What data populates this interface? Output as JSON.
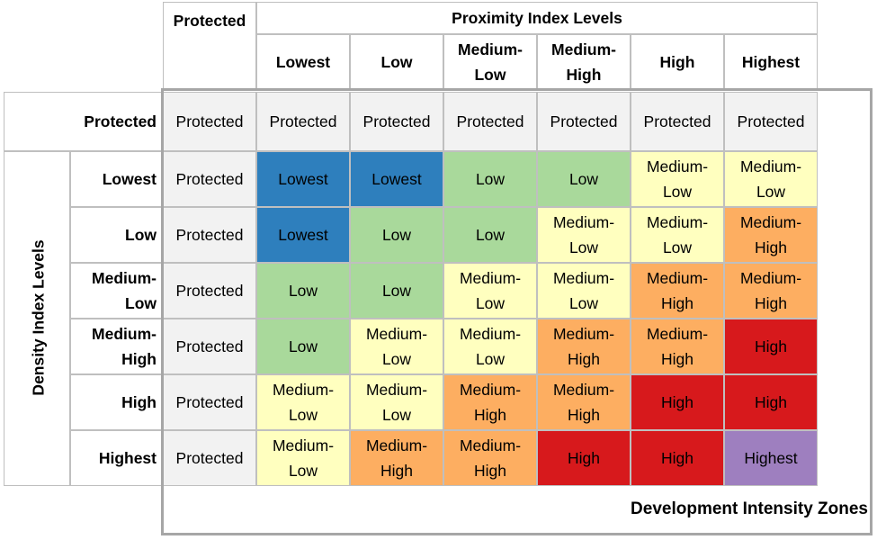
{
  "proximity_header": "Proximity Index Levels",
  "density_header": "Density Index Levels",
  "zones_title": "Development Intensity Zones",
  "column_headers": [
    "Protected",
    "Lowest",
    "Low",
    "Medium-\nLow",
    "Medium-\nHigh",
    "High",
    "Highest"
  ],
  "row_headers": [
    "Protected",
    "Lowest",
    "Low",
    "Medium-\nLow",
    "Medium-\nHigh",
    "High",
    "Highest"
  ],
  "colors": {
    "Protected": "#f2f2f2",
    "Lowest": "#2e7fbd",
    "Low": "#a9d99b",
    "Medium-\nLow": "#ffffbf",
    "Medium-\nHigh": "#fdae61",
    "High": "#d7191c",
    "Highest": "#9e7fbf"
  },
  "grid": [
    [
      "Protected",
      "Protected",
      "Protected",
      "Protected",
      "Protected",
      "Protected",
      "Protected"
    ],
    [
      "Protected",
      "Lowest",
      "Lowest",
      "Low",
      "Low",
      "Medium-\nLow",
      "Medium-\nLow"
    ],
    [
      "Protected",
      "Lowest",
      "Low",
      "Low",
      "Medium-\nLow",
      "Medium-\nLow",
      "Medium-\nHigh"
    ],
    [
      "Protected",
      "Low",
      "Low",
      "Medium-\nLow",
      "Medium-\nLow",
      "Medium-\nHigh",
      "Medium-\nHigh"
    ],
    [
      "Protected",
      "Low",
      "Medium-\nLow",
      "Medium-\nLow",
      "Medium-\nHigh",
      "Medium-\nHigh",
      "High"
    ],
    [
      "Protected",
      "Medium-\nLow",
      "Medium-\nLow",
      "Medium-\nHigh",
      "Medium-\nHigh",
      "High",
      "High"
    ],
    [
      "Protected",
      "Medium-\nLow",
      "Medium-\nHigh",
      "Medium-\nHigh",
      "High",
      "High",
      "Highest"
    ]
  ]
}
